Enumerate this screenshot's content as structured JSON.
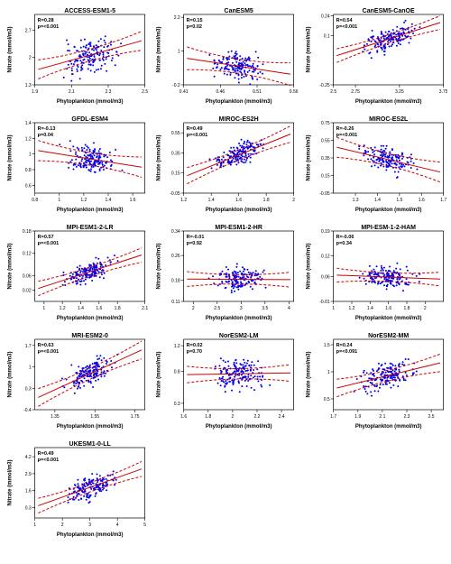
{
  "global": {
    "xlabel": "Phytoplankton (mmol/m3)",
    "ylabel": "Nitrate (mmol/m3)",
    "dot_color": "#0000ee",
    "line_color": "#cc0000",
    "axis_color": "#000000",
    "background_color": "#ffffff",
    "title_fontsize": 7,
    "label_fontsize": 6,
    "tick_fontsize": 5,
    "stats_fontsize": 5.5,
    "dot_radius": 1.0,
    "n_points": 165,
    "line_width": 1,
    "dash_pattern": "3,2",
    "layout": {
      "rows": 5,
      "cols": 3
    }
  },
  "panels": [
    {
      "title": "ACCESS-ESM1-5",
      "R": 0.28,
      "p": "<0.001",
      "xlim": [
        1.9,
        2.5
      ],
      "xticks": [
        1.9,
        2.1,
        2.3,
        2.5
      ],
      "ylim": [
        1.3,
        3.1
      ],
      "yticks": [
        1.3,
        2.0,
        2.7
      ],
      "slope": 1.3,
      "intercept": -0.8,
      "scatter_sd": 0.35,
      "ci": 0.15
    },
    {
      "title": "CanESM5",
      "R": 0.15,
      "p": "0.02",
      "xlim": [
        0.41,
        0.56
      ],
      "xticks": [
        0.41,
        0.46,
        0.51,
        0.56
      ],
      "ylim": [
        -0.2,
        2.3
      ],
      "yticks": [
        -0.2,
        1.0,
        2.2
      ],
      "slope": -4.0,
      "intercept": 2.4,
      "scatter_sd": 0.35,
      "ci": 0.25
    },
    {
      "title": "CanESM5-CanOE",
      "R": 0.54,
      "p": "<0.001",
      "xlim": [
        2.5,
        3.75
      ],
      "xticks": [
        2.5,
        2.75,
        3.25,
        3.75
      ],
      "ylim": [
        -0.25,
        0.25
      ],
      "yticks": [
        -0.25,
        0.1,
        0.24
      ],
      "slope": 0.2,
      "intercept": -0.55,
      "scatter_sd": 0.06,
      "ci": 0.03
    },
    {
      "title": "GFDL-ESM4",
      "R": -0.13,
      "p": "0.04",
      "xlim": [
        0.8,
        1.7
      ],
      "xticks": [
        0.8,
        1.0,
        1.2,
        1.4,
        1.6
      ],
      "ylim": [
        0.5,
        1.4
      ],
      "yticks": [
        0.6,
        0.8,
        1.0,
        1.2,
        1.4
      ],
      "slope": -0.25,
      "intercept": 1.25,
      "scatter_sd": 0.15,
      "ci": 0.08
    },
    {
      "title": "MIROC-ES2H",
      "R": 0.49,
      "p": "<0.001",
      "xlim": [
        1.2,
        2.0
      ],
      "xticks": [
        1.2,
        1.4,
        1.6,
        1.8,
        2.0
      ],
      "ylim": [
        -0.05,
        0.65
      ],
      "yticks": [
        -0.05,
        0.15,
        0.35,
        0.55
      ],
      "slope": 0.55,
      "intercept": -0.55,
      "scatter_sd": 0.09,
      "ci": 0.05
    },
    {
      "title": "MIROC-ES2L",
      "R": -0.26,
      "p": "<0.001",
      "xlim": [
        1.2,
        1.7
      ],
      "xticks": [
        1.3,
        1.4,
        1.5,
        1.6,
        1.7
      ],
      "ylim": [
        -0.05,
        0.75
      ],
      "yticks": [
        -0.05,
        0.15,
        0.35,
        0.55,
        0.75
      ],
      "slope": -0.6,
      "intercept": 1.2,
      "scatter_sd": 0.12,
      "ci": 0.07
    },
    {
      "title": "MPI-ESM1-2-LR",
      "R": 0.57,
      "p": "<0.001",
      "xlim": [
        0.9,
        2.1
      ],
      "xticks": [
        1.0,
        1.2,
        1.4,
        1.6,
        1.8,
        2.1
      ],
      "ylim": [
        -0.01,
        0.18
      ],
      "yticks": [
        0.02,
        0.06,
        0.12,
        0.18
      ],
      "slope": 0.08,
      "intercept": -0.05,
      "scatter_sd": 0.02,
      "ci": 0.012
    },
    {
      "title": "MPI-ESM1-2-HR",
      "R": -0.01,
      "p": "0.92",
      "xlim": [
        1.8,
        4.1
      ],
      "xticks": [
        2.0,
        2.5,
        3.0,
        3.5,
        4.0
      ],
      "ylim": [
        0.11,
        0.34
      ],
      "yticks": [
        0.11,
        0.18,
        0.26,
        0.34
      ],
      "slope": -0.001,
      "intercept": 0.185,
      "scatter_sd": 0.03,
      "ci": 0.015
    },
    {
      "title": "MPI-ESM-1-2-HAM",
      "R": -0.06,
      "p": "0.34",
      "xlim": [
        1.0,
        2.2
      ],
      "xticks": [
        1.0,
        1.2,
        1.4,
        1.6,
        1.8,
        2.0
      ],
      "ylim": [
        -0.01,
        0.19
      ],
      "yticks": [
        -0.01,
        0.06,
        0.12,
        0.19
      ],
      "slope": -0.01,
      "intercept": 0.075,
      "scatter_sd": 0.025,
      "ci": 0.012
    },
    {
      "title": "MRI-ESM2-0",
      "R": 0.63,
      "p": "<0.001",
      "xlim": [
        1.25,
        1.8
      ],
      "xticks": [
        1.35,
        1.55,
        1.75
      ],
      "ylim": [
        -0.4,
        1.9
      ],
      "yticks": [
        -0.4,
        0.3,
        1.0,
        1.7
      ],
      "slope": 3.0,
      "intercept": -3.8,
      "scatter_sd": 0.35,
      "ci": 0.18
    },
    {
      "title": "NorESM2-LM",
      "R": 0.02,
      "p": "0.70",
      "xlim": [
        1.6,
        2.5
      ],
      "xticks": [
        1.6,
        1.8,
        2.0,
        2.2,
        2.4
      ],
      "ylim": [
        0.2,
        1.3
      ],
      "yticks": [
        0.3,
        0.8,
        1.2
      ],
      "slope": 0.03,
      "intercept": 0.7,
      "scatter_sd": 0.18,
      "ci": 0.08
    },
    {
      "title": "NorESM2-MM",
      "R": 0.24,
      "p": "<0.091",
      "xlim": [
        1.7,
        2.6
      ],
      "xticks": [
        1.7,
        1.9,
        2.1,
        2.3,
        2.5
      ],
      "ylim": [
        0.3,
        1.6
      ],
      "yticks": [
        0.5,
        1.0,
        1.5
      ],
      "slope": 0.55,
      "intercept": -0.25,
      "scatter_sd": 0.2,
      "ci": 0.1
    },
    {
      "title": "UKESM1-0-LL",
      "R": 0.49,
      "p": "<0.001",
      "xlim": [
        1.0,
        5.0
      ],
      "xticks": [
        1.0,
        2.0,
        3.0,
        4.0,
        5.0
      ],
      "ylim": [
        -0.5,
        4.9
      ],
      "yticks": [
        0.3,
        1.6,
        2.9,
        4.2
      ],
      "slope": 0.75,
      "intercept": -0.4,
      "scatter_sd": 0.7,
      "ci": 0.35
    }
  ]
}
